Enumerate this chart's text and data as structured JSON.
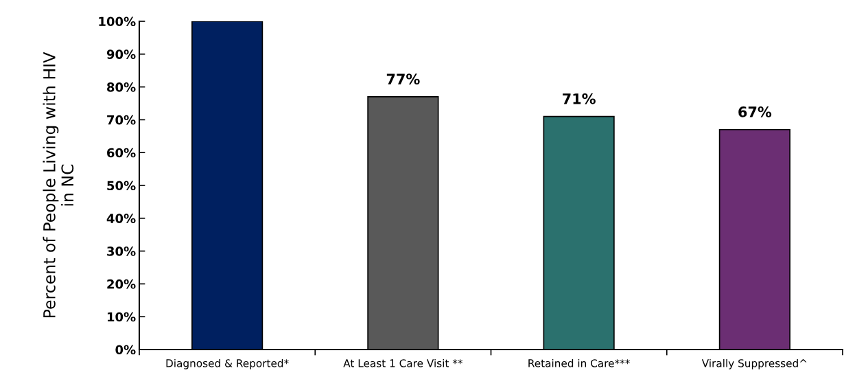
{
  "chart_data": {
    "type": "bar",
    "ylabel": "Percent of People Living with HIV\nin NC",
    "categories": [
      "Diagnosed & Reported*",
      "At Least 1 Care Visit **",
      "Retained in Care***",
      "Virally Suppressed^"
    ],
    "values": [
      100,
      77,
      71,
      67
    ],
    "colors": [
      "#002060",
      "#595959",
      "#2b716e",
      "#6b2e73"
    ],
    "value_labels": [
      null,
      "77%",
      "71%",
      "67%"
    ],
    "ylim": [
      0,
      100
    ],
    "yticks": [
      {
        "value": 0,
        "label": "0%"
      },
      {
        "value": 10,
        "label": "10%"
      },
      {
        "value": 20,
        "label": "20%"
      },
      {
        "value": 30,
        "label": "30%"
      },
      {
        "value": 40,
        "label": "40%"
      },
      {
        "value": 50,
        "label": "50%"
      },
      {
        "value": 60,
        "label": "60%"
      },
      {
        "value": 70,
        "label": "70%"
      },
      {
        "value": 80,
        "label": "80%"
      },
      {
        "value": 90,
        "label": "90%"
      },
      {
        "value": 100,
        "label": "100%"
      }
    ],
    "grid": false,
    "legend": false
  }
}
